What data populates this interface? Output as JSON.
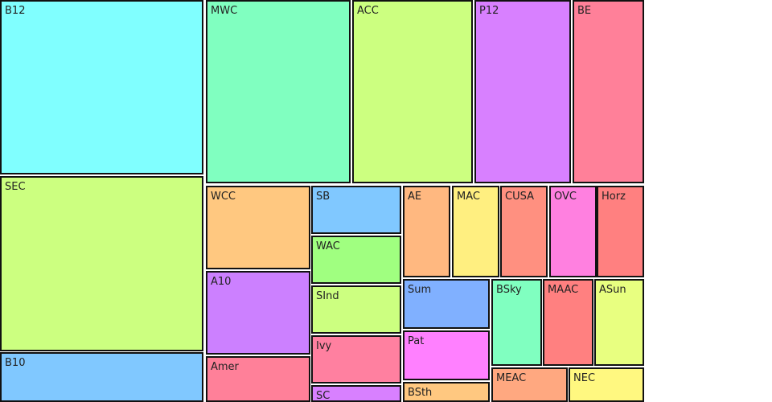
{
  "chart_data": {
    "type": "treemap",
    "items": [
      {
        "label": "B12",
        "color": "#80ffff"
      },
      {
        "label": "SEC",
        "color": "#ccff80"
      },
      {
        "label": "B10",
        "color": "#80c8ff"
      },
      {
        "label": "MWC",
        "color": "#80ffc0"
      },
      {
        "label": "ACC",
        "color": "#ccff80"
      },
      {
        "label": "P12",
        "color": "#d880ff"
      },
      {
        "label": "BE",
        "color": "#ff8099"
      },
      {
        "label": "WCC",
        "color": "#ffc880"
      },
      {
        "label": "A10",
        "color": "#cc80ff"
      },
      {
        "label": "Amer",
        "color": "#ff8099"
      },
      {
        "label": "SB",
        "color": "#80c8ff"
      },
      {
        "label": "WAC",
        "color": "#a0ff80"
      },
      {
        "label": "SInd",
        "color": "#ccff80"
      },
      {
        "label": "Ivy",
        "color": "#ff80a0"
      },
      {
        "label": "SC",
        "color": "#d880ff"
      },
      {
        "label": "AE",
        "color": "#ffb880"
      },
      {
        "label": "MAC",
        "color": "#ffef80"
      },
      {
        "label": "CUSA",
        "color": "#ff9080"
      },
      {
        "label": "OVC",
        "color": "#ff80e0"
      },
      {
        "label": "Horz",
        "color": "#ff8080"
      },
      {
        "label": "Sum",
        "color": "#80b0ff"
      },
      {
        "label": "Pat",
        "color": "#ff80ff"
      },
      {
        "label": "BSth",
        "color": "#ffc880"
      },
      {
        "label": "BSky",
        "color": "#80ffc0"
      },
      {
        "label": "MAAC",
        "color": "#ff8080"
      },
      {
        "label": "ASun",
        "color": "#e8ff80"
      },
      {
        "label": "MEAC",
        "color": "#ffa880"
      },
      {
        "label": "NEC",
        "color": "#fff880"
      }
    ]
  }
}
